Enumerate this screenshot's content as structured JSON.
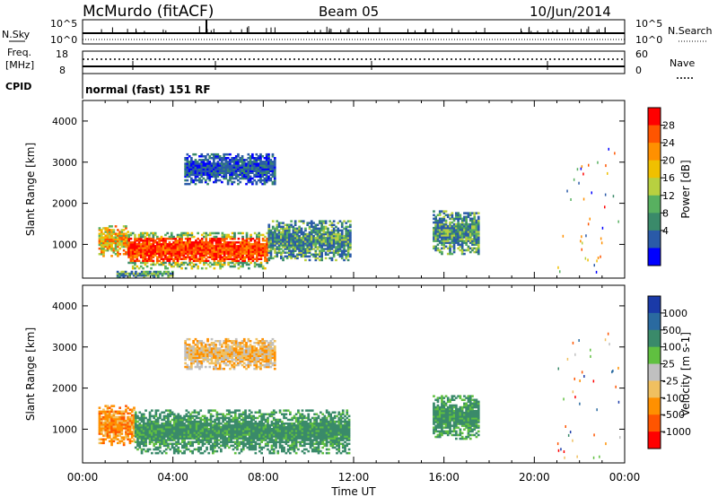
{
  "header": {
    "station": "McMurdo (fitACF)",
    "beam": "Beam 05",
    "date": "10/Jun/2014"
  },
  "summary_panels": {
    "nsky_label": "N.Sky",
    "nsky_scale_top": "10^5",
    "nsky_scale_bottom": "10^0",
    "nsearch_label": "N.Search",
    "nsearch_scale_top": "10^5",
    "nsearch_scale_bottom": "10^0",
    "freq_label_line1": "Freq.",
    "freq_label_line2": "[MHz]",
    "freq_ticks": [
      "18",
      "8"
    ],
    "nave_label": "Nave",
    "nave_ticks": [
      "60",
      "0"
    ],
    "cpid_label": "CPID",
    "cpid_value": "normal (fast) 151 RF"
  },
  "chart_data": [
    {
      "type": "heatmap",
      "parameter": "Power",
      "colorbar_label": "Power [dB]",
      "colorbar_ticks": [
        "28",
        "24",
        "20",
        "16",
        "12",
        "8",
        "4"
      ],
      "colorbar_colors": [
        "#ff0000",
        "#ff5500",
        "#ff9000",
        "#f0c000",
        "#b8d040",
        "#58b060",
        "#3a8a6a",
        "#2a5aa8",
        "#0000ff"
      ],
      "ylabel": "Slant Range [km]",
      "yticks": [
        1000,
        2000,
        3000,
        4000
      ],
      "ylim": [
        180,
        4500
      ],
      "xlim": [
        0,
        24
      ],
      "regions": [
        {
          "t0": 0.7,
          "t1": 2.0,
          "r0": 700,
          "r1": 1450,
          "level": "mid-high"
        },
        {
          "t0": 2.0,
          "t1": 8.2,
          "r0": 400,
          "r1": 1300,
          "level": "high"
        },
        {
          "t0": 8.2,
          "t1": 11.8,
          "r0": 600,
          "r1": 1550,
          "level": "mid"
        },
        {
          "t0": 4.5,
          "t1": 8.5,
          "r0": 2450,
          "r1": 3200,
          "level": "low"
        },
        {
          "t0": 15.5,
          "t1": 17.5,
          "r0": 750,
          "r1": 1800,
          "level": "mid"
        },
        {
          "t0": 1.5,
          "t1": 4.0,
          "r0": 180,
          "r1": 350,
          "level": "mid"
        }
      ]
    },
    {
      "type": "heatmap",
      "parameter": "Velocity",
      "colorbar_label": "Velocity [m s-1]",
      "colorbar_ticks": [
        "1000",
        "500",
        "100",
        "25",
        "-25",
        "-100",
        "-500",
        "-1000"
      ],
      "colorbar_colors": [
        "#1a3aa8",
        "#2a6aa0",
        "#3a8a6a",
        "#60c040",
        "#c0c0c0",
        "#f0c060",
        "#ff9000",
        "#ff5500",
        "#ff0000"
      ],
      "ylabel": "Slant Range [km]",
      "yticks": [
        1000,
        2000,
        3000,
        4000
      ],
      "ylim": [
        180,
        4500
      ],
      "xlabel": "Time UT",
      "xticks": [
        "00:00",
        "04:00",
        "08:00",
        "12:00",
        "16:00",
        "20:00",
        "00:00"
      ],
      "xlim": [
        0,
        24
      ],
      "regions": [
        {
          "t0": 0.7,
          "t1": 2.3,
          "r0": 600,
          "r1": 1550,
          "level": "-500"
        },
        {
          "t0": 2.3,
          "t1": 11.8,
          "r0": 400,
          "r1": 1450,
          "level": "100"
        },
        {
          "t0": 4.5,
          "t1": 8.5,
          "r0": 2450,
          "r1": 3200,
          "level": "-100"
        },
        {
          "t0": 15.5,
          "t1": 17.5,
          "r0": 750,
          "r1": 1800,
          "level": "100"
        }
      ]
    }
  ]
}
